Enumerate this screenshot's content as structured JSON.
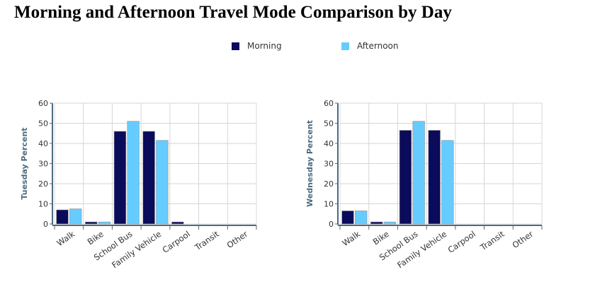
{
  "title": "Morning and Afternoon Travel Mode Comparison by Day",
  "legend": [
    {
      "label": "Morning",
      "color": "#0b0b5c"
    },
    {
      "label": "Afternoon",
      "color": "#66ccff"
    }
  ],
  "chart_data": [
    {
      "type": "bar",
      "categories": [
        "Walk",
        "Bike",
        "School Bus",
        "Family Vehicle",
        "Carpool",
        "Transit",
        "Other"
      ],
      "series": [
        {
          "name": "Morning",
          "values": [
            7,
            1,
            46,
            46,
            1,
            0,
            0
          ]
        },
        {
          "name": "Afternoon",
          "values": [
            7.5,
            1,
            51,
            41.5,
            0,
            0,
            0
          ]
        }
      ],
      "ylabel": "Tuesday Percent",
      "ylim": [
        0,
        60
      ],
      "yticks": [
        0,
        10,
        20,
        30,
        40,
        50,
        60
      ],
      "grid": true
    },
    {
      "type": "bar",
      "categories": [
        "Walk",
        "Bike",
        "School Bus",
        "Family Vehicle",
        "Carpool",
        "Transit",
        "Other"
      ],
      "series": [
        {
          "name": "Morning",
          "values": [
            6.5,
            1,
            46.5,
            46.5,
            0,
            0,
            0
          ]
        },
        {
          "name": "Afternoon",
          "values": [
            6.5,
            1,
            51,
            41.5,
            0,
            0,
            0
          ]
        }
      ],
      "ylabel": "Wednesday Percent",
      "ylim": [
        0,
        60
      ],
      "yticks": [
        0,
        10,
        20,
        30,
        40,
        50,
        60
      ],
      "grid": true
    }
  ]
}
